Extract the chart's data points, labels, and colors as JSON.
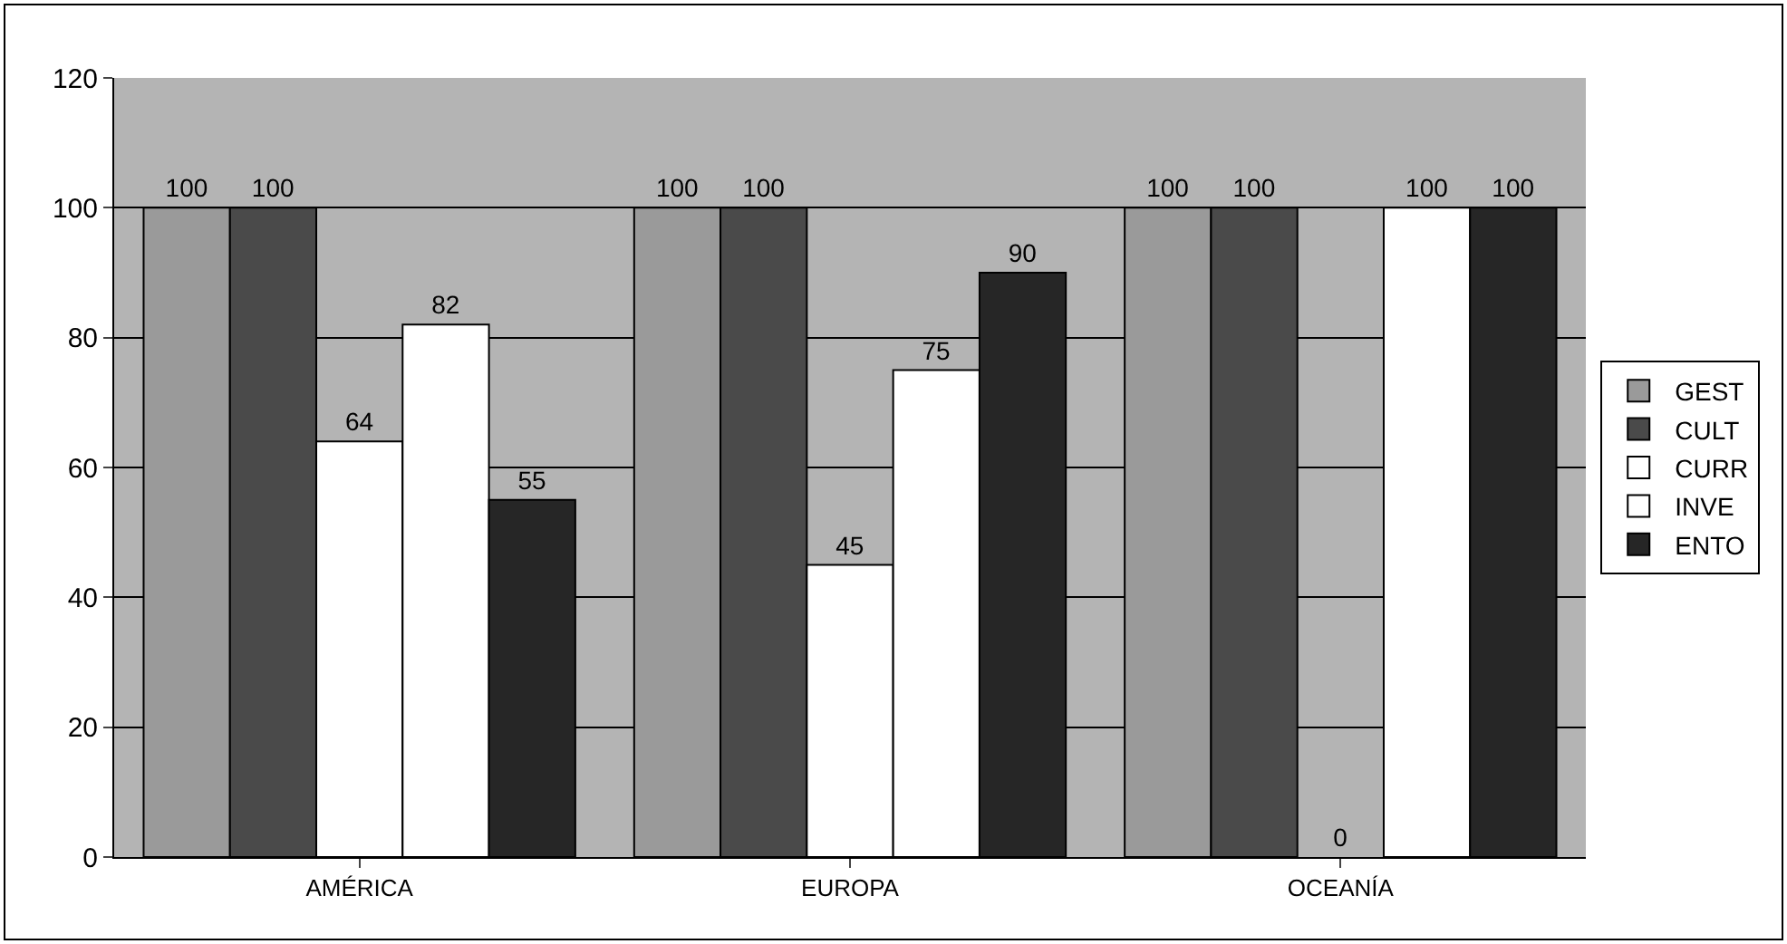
{
  "chart_data": {
    "type": "bar",
    "categories": [
      "AMÉRICA",
      "EUROPA",
      "OCEANÍA"
    ],
    "series": [
      {
        "name": "GEST",
        "color": "#9a9a9a",
        "values": [
          100,
          100,
          100
        ]
      },
      {
        "name": "CULT",
        "color": "#4a4a4a",
        "values": [
          100,
          100,
          100
        ]
      },
      {
        "name": "CURR",
        "color": "#ffffff",
        "values": [
          64,
          45,
          0
        ]
      },
      {
        "name": "INVE",
        "color": "#ffffff",
        "values": [
          82,
          75,
          100
        ]
      },
      {
        "name": "ENTO",
        "color": "#262626",
        "values": [
          55,
          90,
          100
        ]
      }
    ],
    "ylim": [
      0,
      120
    ],
    "yticks": [
      0,
      20,
      40,
      60,
      80,
      100,
      120
    ],
    "grid": "y",
    "legend": "right",
    "data_labels": true
  }
}
